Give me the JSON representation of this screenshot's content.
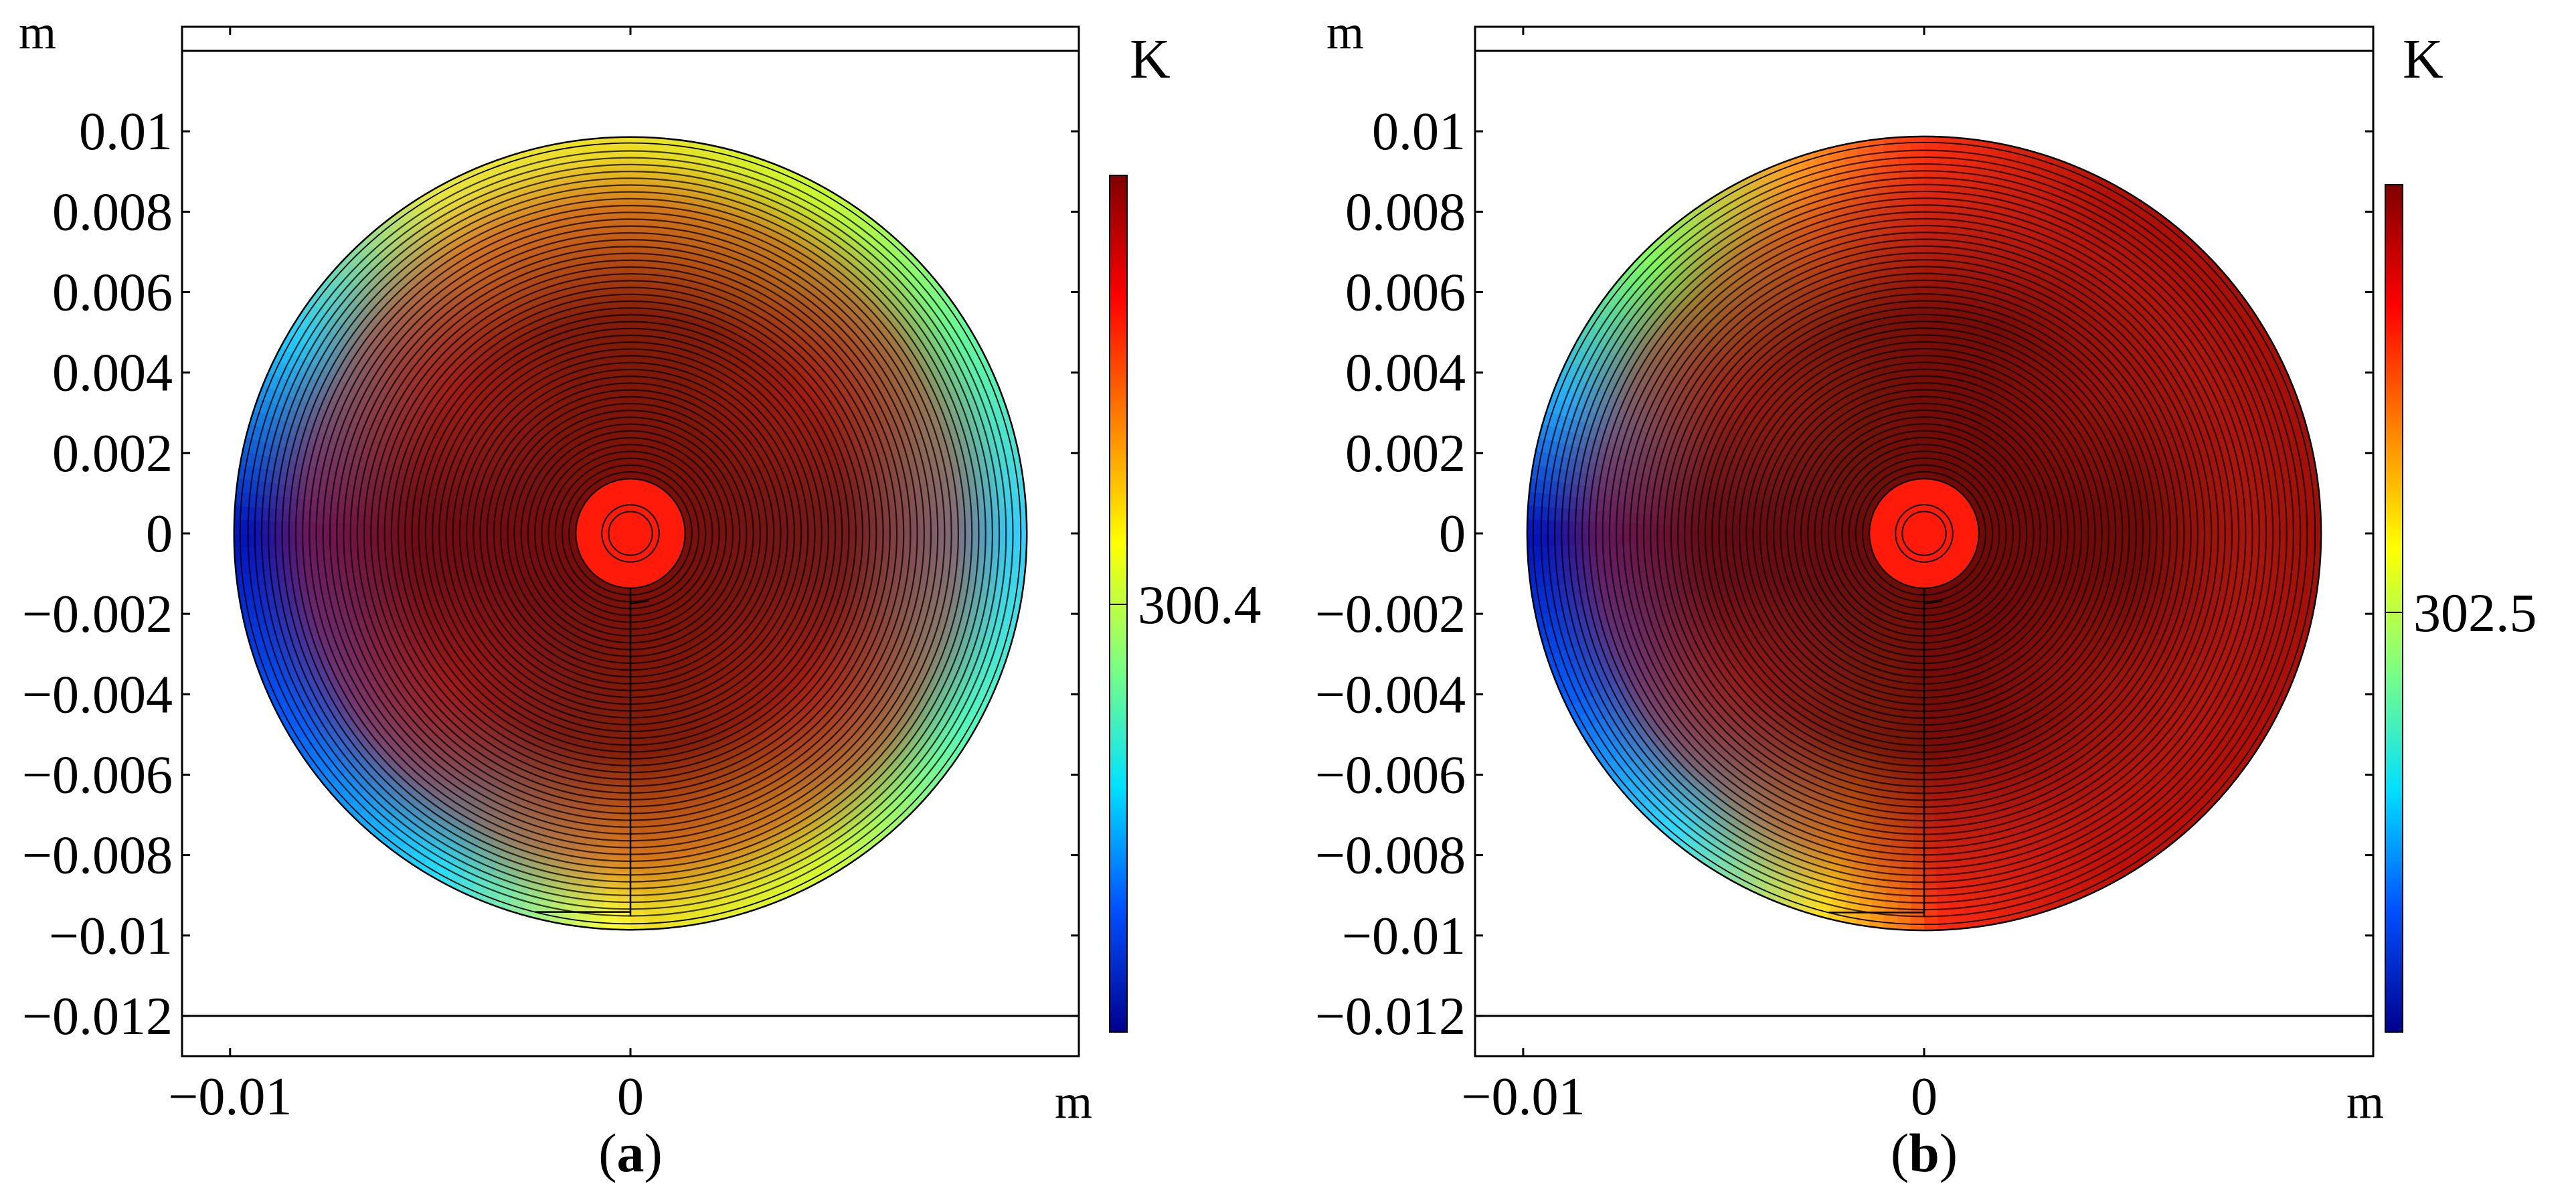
{
  "chart_data": [
    {
      "type": "heatmap",
      "panel_label": "(a)",
      "panel_letter": "a",
      "xunit": "m",
      "yunit": "m",
      "colorbar_unit": "K",
      "colorbar_label": "300.4",
      "x_tick_labels": [
        "−0.01",
        "0"
      ],
      "x_tick_values": [
        -0.01,
        0
      ],
      "y_tick_labels": [
        "0.01",
        "0.008",
        "0.006",
        "0.004",
        "0.002",
        "0",
        "−0.002",
        "−0.004",
        "−0.006",
        "−0.008",
        "−0.01",
        "−0.012"
      ],
      "y_tick_values": [
        0.01,
        0.008,
        0.006,
        0.004,
        0.002,
        0,
        -0.002,
        -0.004,
        -0.006,
        -0.008,
        -0.01,
        -0.012
      ],
      "xlim": [
        -0.0112,
        0.0112
      ],
      "ylim": [
        -0.013,
        0.0126
      ],
      "disk_radius": 0.0099,
      "core_radius": 0.0013,
      "horizontal_lines_y": [
        0.012,
        -0.012
      ],
      "spiral_turns": 48,
      "colormap": [
        "#00008f",
        "#0050ff",
        "#00e0ff",
        "#7fff7f",
        "#ffff00",
        "#ff7f00",
        "#ff0000",
        "#7f0000"
      ],
      "core_color": "#ff1a0a",
      "inner_color": "#7a0b06",
      "hotspot_color": "#c01a10",
      "rim_profile": [
        {
          "angle_deg": 0,
          "color": "#30d0ff"
        },
        {
          "angle_deg": 30,
          "color": "#60ffa0"
        },
        {
          "angle_deg": 60,
          "color": "#c8ff30"
        },
        {
          "angle_deg": 90,
          "color": "#f0e020"
        },
        {
          "angle_deg": 120,
          "color": "#e8e840"
        },
        {
          "angle_deg": 150,
          "color": "#20d0ff"
        },
        {
          "angle_deg": 180,
          "color": "#0010c0"
        },
        {
          "angle_deg": 210,
          "color": "#0060ff"
        },
        {
          "angle_deg": 240,
          "color": "#20e0ff"
        },
        {
          "angle_deg": 268,
          "color": "#ffff30"
        },
        {
          "angle_deg": 272,
          "color": "#f0e020"
        },
        {
          "angle_deg": 300,
          "color": "#d8ff30"
        },
        {
          "angle_deg": 330,
          "color": "#50ffc0"
        },
        {
          "angle_deg": 360,
          "color": "#30d0ff"
        }
      ]
    },
    {
      "type": "heatmap",
      "panel_label": "(b)",
      "panel_letter": "b",
      "xunit": "m",
      "yunit": "m",
      "colorbar_unit": "K",
      "colorbar_label": "302.5",
      "x_tick_labels": [
        "−0.01",
        "0"
      ],
      "x_tick_values": [
        -0.01,
        0
      ],
      "y_tick_labels": [
        "0.01",
        "0.008",
        "0.006",
        "0.004",
        "0.002",
        "0",
        "−0.002",
        "−0.004",
        "−0.006",
        "−0.008",
        "−0.01",
        "−0.012"
      ],
      "y_tick_values": [
        0.01,
        0.008,
        0.006,
        0.004,
        0.002,
        0,
        -0.002,
        -0.004,
        -0.006,
        -0.008,
        -0.01,
        -0.012
      ],
      "xlim": [
        -0.0112,
        0.0112
      ],
      "ylim": [
        -0.013,
        0.0126
      ],
      "disk_radius": 0.0099,
      "core_radius": 0.0013,
      "horizontal_lines_y": [
        0.012,
        -0.012
      ],
      "spiral_turns": 48,
      "colormap": [
        "#00008f",
        "#0050ff",
        "#00e0ff",
        "#7fff7f",
        "#ffff00",
        "#ff7f00",
        "#ff0000",
        "#7f0000"
      ],
      "core_color": "#ff1a0a",
      "inner_color": "#6e0a06",
      "hotspot_color": "#b41a10",
      "rim_profile": [
        {
          "angle_deg": 0,
          "color": "#a01008"
        },
        {
          "angle_deg": 60,
          "color": "#b01008"
        },
        {
          "angle_deg": 90,
          "color": "#ff3010"
        },
        {
          "angle_deg": 110,
          "color": "#ffa020"
        },
        {
          "angle_deg": 135,
          "color": "#80ff60"
        },
        {
          "angle_deg": 160,
          "color": "#20b0ff"
        },
        {
          "angle_deg": 180,
          "color": "#0010c0"
        },
        {
          "angle_deg": 205,
          "color": "#0060ff"
        },
        {
          "angle_deg": 230,
          "color": "#30e0ff"
        },
        {
          "angle_deg": 255,
          "color": "#ffe020"
        },
        {
          "angle_deg": 268,
          "color": "#ff7010"
        },
        {
          "angle_deg": 272,
          "color": "#ff2a10"
        },
        {
          "angle_deg": 300,
          "color": "#c01008"
        },
        {
          "angle_deg": 360,
          "color": "#a01008"
        }
      ]
    }
  ]
}
